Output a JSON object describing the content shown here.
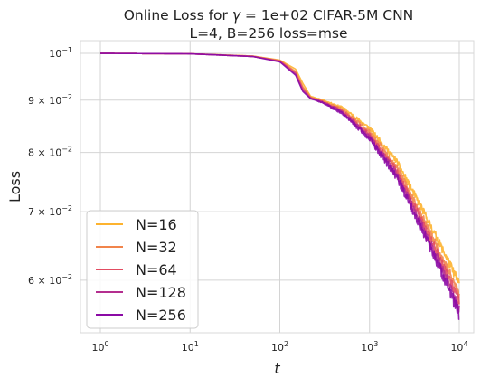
{
  "chart_data": {
    "type": "line",
    "title_line1_pre": "Online Loss for ",
    "title_gamma": "γ",
    "title_line1_post": " = 1e+02 CIFAR-5M CNN",
    "title_line2": "L=4, B=256 loss=mse",
    "xlabel": "t",
    "ylabel": "Loss",
    "xscale": "log",
    "yscale": "log",
    "xlim": [
      0.6,
      14500
    ],
    "ylim": [
      0.0533,
      0.1029
    ],
    "grid": true,
    "legend_position": "lower-left",
    "x_ticks": [
      {
        "value": 1,
        "base": "10",
        "exp": "0"
      },
      {
        "value": 10,
        "base": "10",
        "exp": "1"
      },
      {
        "value": 100,
        "base": "10",
        "exp": "2"
      },
      {
        "value": 1000,
        "base": "10",
        "exp": "3"
      },
      {
        "value": 10000,
        "base": "10",
        "exp": "4"
      }
    ],
    "y_ticks": [
      {
        "value": 0.1,
        "mant": "10",
        "exp": "−1"
      },
      {
        "value": 0.09,
        "mant": "9 × 10",
        "exp": "−2"
      },
      {
        "value": 0.08,
        "mant": "8 × 10",
        "exp": "−2"
      },
      {
        "value": 0.07,
        "mant": "7 × 10",
        "exp": "−2"
      },
      {
        "value": 0.06,
        "mant": "6 × 10",
        "exp": "−2"
      }
    ],
    "series": [
      {
        "name": "N=16",
        "color": "#fdb32f",
        "noise": 0.011,
        "seed": 11,
        "points": [
          [
            1,
            0.1
          ],
          [
            10,
            0.0999
          ],
          [
            50,
            0.0994
          ],
          [
            100,
            0.0985
          ],
          [
            150,
            0.0965
          ],
          [
            180,
            0.0935
          ],
          [
            220,
            0.0908
          ],
          [
            300,
            0.09
          ],
          [
            500,
            0.0885
          ],
          [
            1000,
            0.0845
          ],
          [
            2000,
            0.0785
          ],
          [
            4000,
            0.07
          ],
          [
            7000,
            0.0635
          ],
          [
            10000,
            0.0595
          ]
        ]
      },
      {
        "name": "N=32",
        "color": "#f1844b",
        "noise": 0.012,
        "seed": 23,
        "points": [
          [
            1,
            0.1
          ],
          [
            10,
            0.0999
          ],
          [
            50,
            0.0994
          ],
          [
            100,
            0.0984
          ],
          [
            150,
            0.096
          ],
          [
            180,
            0.0928
          ],
          [
            220,
            0.0906
          ],
          [
            300,
            0.0898
          ],
          [
            500,
            0.0881
          ],
          [
            1000,
            0.0838
          ],
          [
            2000,
            0.0775
          ],
          [
            4000,
            0.0688
          ],
          [
            7000,
            0.0622
          ],
          [
            10000,
            0.0582
          ]
        ]
      },
      {
        "name": "N=64",
        "color": "#e24c61",
        "noise": 0.013,
        "seed": 37,
        "points": [
          [
            1,
            0.1
          ],
          [
            10,
            0.0999
          ],
          [
            50,
            0.0993
          ],
          [
            100,
            0.0983
          ],
          [
            150,
            0.0957
          ],
          [
            180,
            0.0924
          ],
          [
            220,
            0.0905
          ],
          [
            300,
            0.0897
          ],
          [
            500,
            0.0878
          ],
          [
            1000,
            0.0832
          ],
          [
            2000,
            0.0768
          ],
          [
            4000,
            0.068
          ],
          [
            7000,
            0.0613
          ],
          [
            10000,
            0.0572
          ]
        ]
      },
      {
        "name": "N=128",
        "color": "#b42e8f",
        "noise": 0.014,
        "seed": 53,
        "points": [
          [
            1,
            0.1
          ],
          [
            10,
            0.0999
          ],
          [
            50,
            0.0993
          ],
          [
            100,
            0.0982
          ],
          [
            150,
            0.0954
          ],
          [
            180,
            0.092
          ],
          [
            220,
            0.0904
          ],
          [
            300,
            0.0896
          ],
          [
            500,
            0.0876
          ],
          [
            1000,
            0.0828
          ],
          [
            2000,
            0.0762
          ],
          [
            4000,
            0.0673
          ],
          [
            7000,
            0.0606
          ],
          [
            10000,
            0.0562
          ]
        ]
      },
      {
        "name": "N=256",
        "color": "#8b0aa5",
        "noise": 0.015,
        "seed": 71,
        "points": [
          [
            1,
            0.1
          ],
          [
            10,
            0.0999
          ],
          [
            50,
            0.0993
          ],
          [
            100,
            0.0981
          ],
          [
            150,
            0.0952
          ],
          [
            180,
            0.0918
          ],
          [
            220,
            0.0903
          ],
          [
            300,
            0.0895
          ],
          [
            500,
            0.0874
          ],
          [
            1000,
            0.0825
          ],
          [
            2000,
            0.0758
          ],
          [
            4000,
            0.0668
          ],
          [
            7000,
            0.06
          ],
          [
            10000,
            0.0555
          ]
        ]
      }
    ]
  }
}
